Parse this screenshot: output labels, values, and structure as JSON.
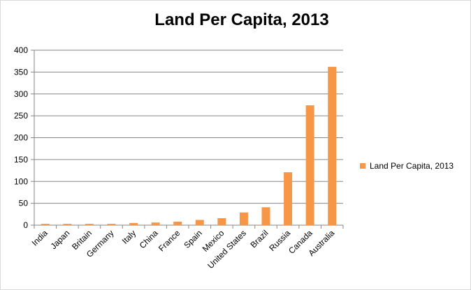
{
  "chart_data": {
    "type": "bar",
    "title": "Land Per Capita, 2013",
    "categories": [
      "India",
      "Japan",
      "Britain",
      "Germany",
      "Italy",
      "China",
      "France",
      "Spain",
      "Mexico",
      "United States",
      "Brazil",
      "Russia",
      "Canada",
      "Australia"
    ],
    "series": [
      {
        "name": "Land Per Capita, 2013",
        "values": [
          3,
          3,
          3,
          3,
          5,
          6,
          8,
          12,
          16,
          29,
          41,
          121,
          274,
          362
        ],
        "color": "#f79646"
      }
    ],
    "ylim": [
      0,
      400
    ],
    "yticks": [
      0,
      50,
      100,
      150,
      200,
      250,
      300,
      350,
      400
    ],
    "grid": true,
    "legend": "right",
    "xlabel": "",
    "ylabel": ""
  }
}
